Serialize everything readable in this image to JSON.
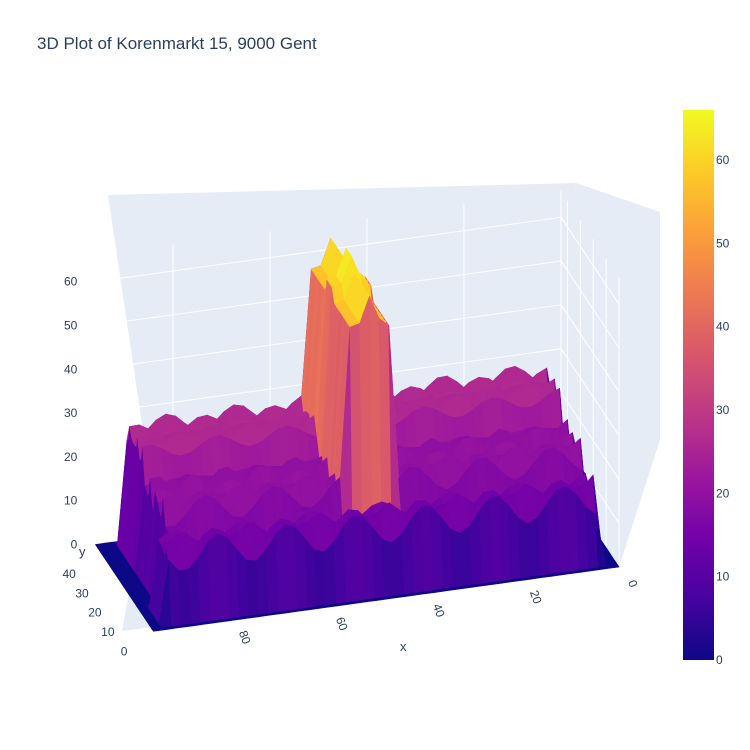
{
  "title": "3D Plot of Korenmarkt 15, 9000 Gent",
  "chart_data": {
    "type": "surface",
    "title": "3D Plot of Korenmarkt 15, 9000 Gent",
    "xlabel": "x",
    "ylabel": "y",
    "zlabel": "",
    "x_ticks": [
      0,
      20,
      40,
      60,
      80
    ],
    "y_ticks": [
      0,
      10,
      20,
      30,
      40
    ],
    "z_ticks": [
      0,
      10,
      20,
      30,
      40,
      50,
      60
    ],
    "xlim": [
      0,
      96
    ],
    "ylim": [
      0,
      45
    ],
    "zlim": [
      0,
      66
    ],
    "colorbar": {
      "ticks": [
        0,
        10,
        20,
        30,
        40,
        50,
        60
      ],
      "range": [
        0,
        66
      ],
      "colorscale": "Plasma"
    },
    "features": [
      {
        "name": "tower",
        "x_range": [
          43,
          52
        ],
        "peak": 66
      },
      {
        "name": "rear wall",
        "height": 28
      },
      {
        "name": "front facades",
        "height": 17
      },
      {
        "name": "ground",
        "height": 0
      }
    ]
  },
  "colors": {
    "scene_bg": "#e5ecf6",
    "grid": "#ffffff",
    "text": "#2a3f5f",
    "plasma": [
      "#0d0887",
      "#46039f",
      "#7201a8",
      "#9c179e",
      "#bd3786",
      "#d8576b",
      "#ed7953",
      "#fb9f3a",
      "#fdca26",
      "#f0f921"
    ]
  }
}
